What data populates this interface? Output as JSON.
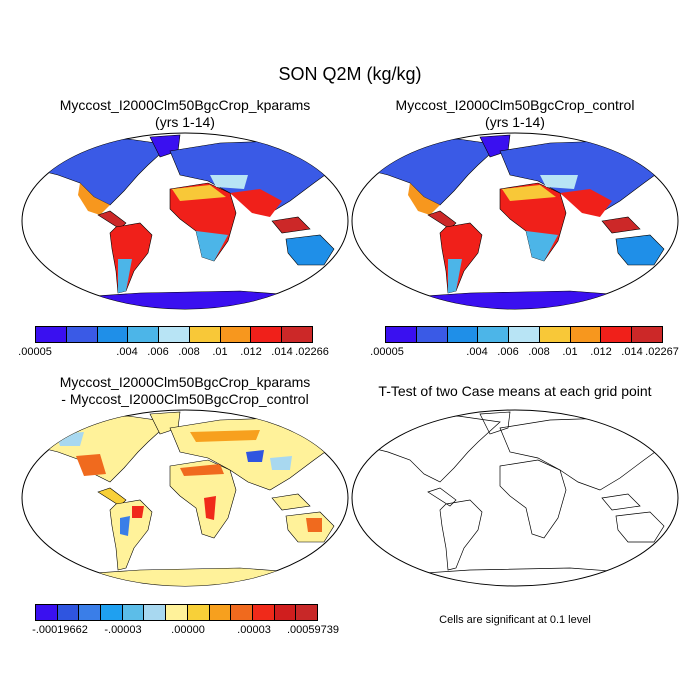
{
  "main_title": "SON Q2M (kg/kg)",
  "panels": [
    {
      "title_lines": [
        "Myccost_I2000Clm50BgcCrop_kparams",
        "(yrs 1-14)"
      ],
      "colorbar": {
        "colors": [
          "#3a10f0",
          "#3a5ae6",
          "#1f8fe8",
          "#4cb5e8",
          "#b8e4f5",
          "#f8c838",
          "#f7971e",
          "#f0201a",
          "#cc2828"
        ],
        "tick_labels": [
          ".00005",
          ".004",
          ".006",
          ".008",
          ".01",
          ".012",
          ".014",
          ".02266"
        ]
      }
    },
    {
      "title_lines": [
        "Myccost_I2000Clm50BgcCrop_control",
        "(yrs 1-14)"
      ],
      "colorbar": {
        "colors": [
          "#3a10f0",
          "#3a5ae6",
          "#1f8fe8",
          "#4cb5e8",
          "#b8e4f5",
          "#f8c838",
          "#f7971e",
          "#f0201a",
          "#cc2828"
        ],
        "tick_labels": [
          ".00005",
          ".004",
          ".006",
          ".008",
          ".01",
          ".012",
          ".014",
          ".02267"
        ]
      }
    },
    {
      "title_lines": [
        "Myccost_I2000Clm50BgcCrop_kparams",
        "- Myccost_I2000Clm50BgcCrop_control"
      ],
      "colorbar": {
        "colors": [
          "#3a10f0",
          "#2f55e0",
          "#3a7ee8",
          "#1fa0f0",
          "#5cbde8",
          "#a8d8f0",
          "#fff29a",
          "#f8d038",
          "#f7a01e",
          "#f06a1e",
          "#f02a1a",
          "#d01e1e",
          "#c82828"
        ],
        "tick_labels": [
          "-.00019662",
          "-.00003",
          ".00000",
          ".00003",
          ".00059739"
        ]
      }
    },
    {
      "title_lines": [
        "T-Test of two Case means at each grid point"
      ],
      "note": "Cells are significant at 0.1 level"
    }
  ]
}
